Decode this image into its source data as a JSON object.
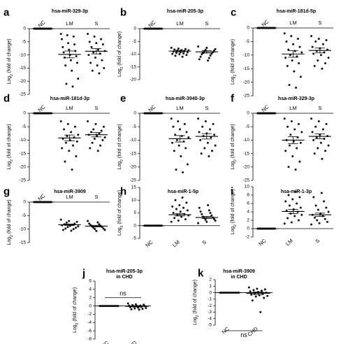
{
  "figure": {
    "type": "multi-panel dot plot",
    "colors": {
      "points": "#111111",
      "axis": "#000000",
      "background": "#ffffff"
    }
  },
  "chart_data": [
    {
      "panel": "a",
      "type": "scatter",
      "title": "hsa-miR-329-3p",
      "ylabel": "Log2 (fold of change)",
      "ylim": [
        -25,
        0
      ],
      "yticks": [
        0,
        -5,
        -10,
        -15,
        -20,
        -25
      ],
      "categories": [
        "NC",
        "LM",
        "S"
      ],
      "category_label_rotation": [
        -40,
        0,
        0
      ],
      "series": [
        {
          "name": "NC",
          "mean": 0,
          "sem": 0,
          "values": [
            0,
            0,
            0,
            0,
            0,
            0,
            0,
            0,
            0,
            0,
            0,
            0,
            0,
            0,
            0,
            0,
            0,
            0,
            0,
            0
          ]
        },
        {
          "name": "LM",
          "mean": -9.8,
          "sem": 1.3,
          "values": [
            -2,
            -2.5,
            -3,
            -4,
            -5.5,
            -6,
            -7,
            -8,
            -8.5,
            -9,
            -10,
            -10.5,
            -11,
            -12,
            -13,
            -14,
            -16,
            -19,
            -21,
            -22
          ]
        },
        {
          "name": "S",
          "mean": -8.6,
          "sem": 1.0,
          "values": [
            -2,
            -3,
            -4,
            -5,
            -5.5,
            -6,
            -7,
            -8,
            -8.5,
            -9,
            -9.5,
            -10,
            -11,
            -12,
            -13,
            -14,
            -15,
            -16,
            -17
          ]
        }
      ]
    },
    {
      "panel": "b",
      "type": "scatter",
      "title": "hsa-miR-205-3p",
      "ylabel": "Log2 (fold of change)",
      "ylim": [
        -20,
        0
      ],
      "yticks": [
        0,
        -5,
        -10,
        -15,
        -20
      ],
      "categories": [
        "NC",
        "LM",
        "S"
      ],
      "category_label_rotation": [
        -40,
        0,
        0
      ],
      "series": [
        {
          "name": "NC",
          "mean": 0,
          "sem": 0,
          "values": [
            0,
            0,
            0,
            0,
            0,
            0,
            0,
            0,
            0,
            0,
            0,
            0,
            0,
            0,
            0,
            0,
            0,
            0
          ]
        },
        {
          "name": "LM",
          "mean": -8.8,
          "sem": 0.3,
          "values": [
            -7.5,
            -7.8,
            -8,
            -8.2,
            -8.4,
            -8.5,
            -8.6,
            -8.8,
            -9,
            -9.2,
            -9.3,
            -9.5,
            -9.7,
            -9.9,
            -10,
            -10.3,
            -10.6,
            -11
          ]
        },
        {
          "name": "S",
          "mean": -9.1,
          "sem": 0.5,
          "values": [
            -7,
            -7.5,
            -8,
            -8.3,
            -8.6,
            -9,
            -9.2,
            -9.5,
            -9.8,
            -10,
            -10.5,
            -11,
            -11.5,
            -12,
            -12.5
          ]
        }
      ]
    },
    {
      "panel": "c",
      "type": "scatter",
      "title": "hsa-miR-181d-5p",
      "ylabel": "Log2 (fold of change)",
      "ylim": [
        -25,
        0
      ],
      "yticks": [
        0,
        -5,
        -10,
        -15,
        -20,
        -25
      ],
      "categories": [
        "NC",
        "LM",
        "S"
      ],
      "category_label_rotation": [
        -40,
        0,
        0
      ],
      "series": [
        {
          "name": "NC",
          "mean": 0,
          "sem": 0,
          "values": [
            0,
            0,
            0,
            0,
            0,
            0,
            0,
            0,
            0,
            0,
            0,
            0,
            0,
            0,
            0,
            0,
            0,
            0,
            0,
            0
          ]
        },
        {
          "name": "LM",
          "mean": -9.6,
          "sem": 1.2,
          "values": [
            -2,
            -3,
            -4,
            -5,
            -6,
            -7,
            -8,
            -8.5,
            -9,
            -10,
            -10.5,
            -11,
            -12,
            -13,
            -14,
            -16,
            -18,
            -21,
            -22
          ]
        },
        {
          "name": "S",
          "mean": -8.3,
          "sem": 0.9,
          "values": [
            -3,
            -4,
            -4.5,
            -5,
            -6,
            -7,
            -7.5,
            -8,
            -8.5,
            -9,
            -9.5,
            -10,
            -11,
            -12,
            -13,
            -14,
            -15
          ]
        }
      ]
    },
    {
      "panel": "d",
      "type": "scatter",
      "title": "hsa-miR-181d-3p",
      "ylabel": "Log2 (fold of change)",
      "ylim": [
        -25,
        0
      ],
      "yticks": [
        0,
        -5,
        -10,
        -15,
        -20,
        -25
      ],
      "categories": [
        "NC",
        "LM",
        "S"
      ],
      "category_label_rotation": [
        -40,
        0,
        0
      ],
      "series": [
        {
          "name": "NC",
          "mean": 0,
          "sem": 0,
          "values": [
            0,
            0,
            0,
            0,
            0,
            0,
            0,
            0,
            0,
            0,
            0,
            0,
            0,
            0,
            0,
            0,
            0,
            0,
            0,
            0
          ]
        },
        {
          "name": "LM",
          "mean": -9.2,
          "sem": 1.1,
          "values": [
            -3,
            -4,
            -5,
            -6,
            -7,
            -8,
            -8.5,
            -9,
            -9.5,
            -10,
            -10.5,
            -11,
            -12,
            -13,
            -14,
            -16,
            -18,
            -21
          ]
        },
        {
          "name": "S",
          "mean": -8.0,
          "sem": 0.8,
          "values": [
            -3,
            -4,
            -5,
            -6,
            -6.5,
            -7,
            -7.5,
            -8,
            -8.5,
            -9,
            -9.5,
            -10,
            -11,
            -12,
            -13,
            -14
          ]
        }
      ]
    },
    {
      "panel": "e",
      "type": "scatter",
      "title": "hsa-miR-3940-3p",
      "ylabel": "Log2 (fold of change)",
      "ylim": [
        -25,
        0
      ],
      "yticks": [
        0,
        -5,
        -10,
        -15,
        -20,
        -25
      ],
      "categories": [
        "NC",
        "LM",
        "S"
      ],
      "category_label_rotation": [
        -40,
        0,
        0
      ],
      "series": [
        {
          "name": "NC",
          "mean": 0,
          "sem": 0,
          "values": [
            0,
            0,
            0,
            0,
            0,
            0,
            0,
            0,
            0,
            0,
            0,
            0,
            0,
            0,
            0,
            0,
            0,
            0,
            0,
            0
          ]
        },
        {
          "name": "LM",
          "mean": -9.5,
          "sem": 1.2,
          "values": [
            -2,
            -3,
            -4,
            -5,
            -6,
            -7,
            -8,
            -8.5,
            -9,
            -10,
            -10.5,
            -11,
            -12,
            -13,
            -14,
            -16,
            -19,
            -21,
            -22
          ]
        },
        {
          "name": "S",
          "mean": -8.6,
          "sem": 1.0,
          "values": [
            -2,
            -3,
            -4,
            -5,
            -6,
            -7,
            -7.5,
            -8,
            -8.5,
            -9,
            -10,
            -11,
            -12,
            -13,
            -14,
            -15,
            -16
          ]
        }
      ]
    },
    {
      "panel": "f",
      "type": "scatter",
      "title": "hsa-miR-329-3p",
      "ylabel": "Log2 (fold of change)",
      "ylim": [
        -25,
        0
      ],
      "yticks": [
        0,
        -5,
        -10,
        -15,
        -20,
        -25
      ],
      "categories": [
        "NC",
        "LM",
        "S"
      ],
      "category_label_rotation": [
        -40,
        0,
        0
      ],
      "series": [
        {
          "name": "NC",
          "mean": 0,
          "sem": 0,
          "values": [
            0,
            0,
            0,
            0,
            0,
            0,
            0,
            0,
            0,
            0,
            0,
            0,
            0,
            0,
            0,
            0,
            0,
            0,
            0,
            0
          ]
        },
        {
          "name": "LM",
          "mean": -10.0,
          "sem": 1.3,
          "values": [
            -2,
            -3,
            -4,
            -5,
            -6,
            -7,
            -8,
            -9,
            -10,
            -10.5,
            -11,
            -12,
            -13,
            -14,
            -16,
            -18,
            -20,
            -21
          ]
        },
        {
          "name": "S",
          "mean": -8.6,
          "sem": 0.9,
          "values": [
            -2,
            -3,
            -4,
            -5,
            -6,
            -7,
            -8,
            -8.5,
            -9,
            -9.5,
            -10,
            -11,
            -12,
            -13,
            -14,
            -15,
            -17
          ]
        }
      ]
    },
    {
      "panel": "g",
      "type": "scatter",
      "title": "hsa-miR-3909",
      "ylabel": "Log2 (fold of change)",
      "ylim": [
        -15,
        0
      ],
      "yticks": [
        0,
        -5,
        -10,
        -15
      ],
      "categories": [
        "NC",
        "LM",
        "S"
      ],
      "category_label_rotation": [
        -40,
        0,
        0
      ],
      "series": [
        {
          "name": "NC",
          "mean": 0,
          "sem": 0,
          "values": [
            0,
            0,
            0,
            0,
            0,
            0,
            0,
            0,
            0,
            0,
            0,
            0,
            0,
            0,
            0,
            0,
            0,
            0
          ]
        },
        {
          "name": "LM",
          "mean": -8.4,
          "sem": 0.3,
          "values": [
            -6.5,
            -7,
            -7.3,
            -7.6,
            -8,
            -8.2,
            -8.4,
            -8.6,
            -8.8,
            -9,
            -9.2,
            -9.5,
            -9.8,
            -10,
            -10.3,
            -10.6
          ]
        },
        {
          "name": "S",
          "mean": -8.9,
          "sem": 0.3,
          "values": [
            -7,
            -7.5,
            -8,
            -8.2,
            -8.5,
            -8.8,
            -9,
            -9.2,
            -9.5,
            -9.8,
            -10,
            -10.3,
            -10.7
          ]
        }
      ]
    },
    {
      "panel": "h",
      "type": "scatter",
      "title": "hsa-miR-1-5p",
      "ylabel": "Log2 (fold of change)",
      "ylim": [
        -5,
        15
      ],
      "yticks": [
        -5,
        0,
        5,
        10,
        15
      ],
      "categories": [
        "NC",
        "LM",
        "S"
      ],
      "category_label_rotation": [
        -40,
        -40,
        -40
      ],
      "series": [
        {
          "name": "NC",
          "mean": 0,
          "sem": 0,
          "values": [
            0,
            0,
            0,
            0,
            0,
            0,
            0,
            0,
            0,
            0,
            0,
            0,
            0,
            0,
            0,
            0,
            0,
            0
          ]
        },
        {
          "name": "LM",
          "mean": 4.3,
          "sem": 0.5,
          "values": [
            1.5,
            2,
            2.5,
            3,
            3.5,
            4,
            4.2,
            4.5,
            5,
            5.5,
            6,
            6.5,
            7,
            7.5,
            8,
            9,
            10,
            11
          ]
        },
        {
          "name": "S",
          "mean": 3.2,
          "sem": 0.4,
          "values": [
            1,
            1.5,
            2,
            2.3,
            2.6,
            3,
            3.2,
            3.5,
            4,
            4.5,
            5,
            5.5,
            6,
            7,
            8
          ]
        }
      ]
    },
    {
      "panel": "i",
      "type": "scatter",
      "title": "hsa-miR-1-3p",
      "ylabel": "Log2 (fold of change)",
      "ylim": [
        -2,
        10
      ],
      "yticks": [
        -2,
        0,
        2,
        4,
        6,
        8,
        10
      ],
      "categories": [
        "NC",
        "LM",
        "S"
      ],
      "category_label_rotation": [
        -40,
        -40,
        -40
      ],
      "series": [
        {
          "name": "NC",
          "mean": 0,
          "sem": 0,
          "values": [
            0,
            0,
            0,
            0,
            0,
            0,
            0,
            0,
            0,
            0,
            0,
            0,
            0,
            0,
            0,
            0,
            0,
            0
          ]
        },
        {
          "name": "LM",
          "mean": 4.1,
          "sem": 0.5,
          "values": [
            1.2,
            1.5,
            2,
            2.5,
            3,
            3.3,
            3.6,
            4,
            4.3,
            4.6,
            5,
            5.5,
            6,
            6.5,
            7,
            7.5,
            8,
            8.8
          ]
        },
        {
          "name": "S",
          "mean": 3.3,
          "sem": 0.4,
          "values": [
            1,
            1.3,
            1.6,
            2,
            2.3,
            2.6,
            3,
            3.3,
            3.6,
            4,
            4.5,
            5,
            5.5,
            6.5,
            7.5,
            8.5
          ]
        }
      ]
    },
    {
      "panel": "j",
      "type": "scatter",
      "title": "hsa-miR-205-3p\nin CHD",
      "ylabel": "Log2 (fold of change)",
      "ylim": [
        -8,
        6
      ],
      "yticks": [
        -8,
        -6,
        -4,
        -2,
        0,
        2,
        4,
        6
      ],
      "categories": [
        "NC",
        "CHD"
      ],
      "category_label_rotation": [
        -40,
        -40
      ],
      "annotation": {
        "text": "ns",
        "position": "above"
      },
      "series": [
        {
          "name": "NC",
          "mean": 0,
          "sem": 0,
          "values": [
            0,
            0,
            0,
            0,
            0,
            0,
            0,
            0,
            0,
            0,
            0,
            0
          ]
        },
        {
          "name": "CHD",
          "mean": -0.1,
          "sem": 0.15,
          "values": [
            0.6,
            0.4,
            0.3,
            0.2,
            0.1,
            0.1,
            0,
            0,
            -0.1,
            -0.2,
            -0.3,
            -0.4,
            -0.5,
            -0.6,
            -0.7,
            -0.8,
            -0.9
          ]
        }
      ]
    },
    {
      "panel": "k",
      "type": "scatter",
      "title": "hsa-miR-3909\nin CHD",
      "ylabel": "Log2 (fold of change)",
      "ylim": [
        -5,
        2
      ],
      "yticks": [
        -5,
        -4,
        -3,
        -2,
        -1,
        0,
        1,
        2
      ],
      "categories": [
        "NC",
        "CHD"
      ],
      "category_label_rotation": [
        -40,
        -40
      ],
      "annotation": {
        "text": "ns",
        "position": "below"
      },
      "series": [
        {
          "name": "NC",
          "mean": 0,
          "sem": 0,
          "values": [
            0,
            0,
            0,
            0,
            0,
            0,
            0,
            0,
            0,
            0,
            0,
            0
          ]
        },
        {
          "name": "CHD",
          "mean": -0.1,
          "sem": 0.2,
          "values": [
            0.8,
            0.6,
            0.5,
            0.4,
            0.3,
            0.2,
            0.1,
            0,
            -0.1,
            -0.2,
            -0.3,
            -0.4,
            -0.5,
            -0.6,
            -0.8,
            -1.2,
            -3.0
          ]
        }
      ]
    }
  ]
}
